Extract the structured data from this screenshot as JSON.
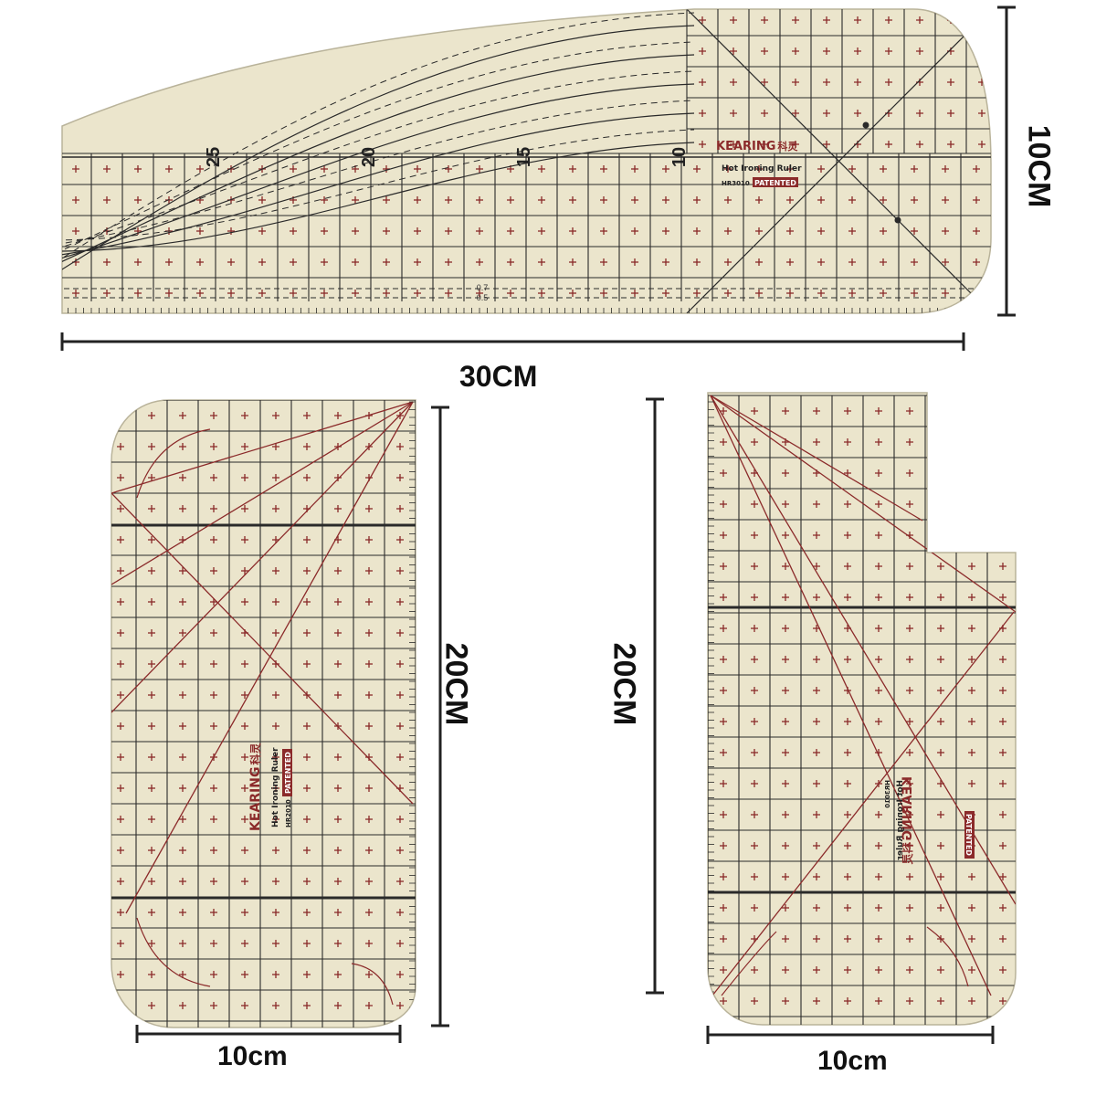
{
  "dimensions": {
    "top_width": "30CM",
    "top_height": "10CM",
    "left_height": "20CM",
    "left_width": "10cm",
    "right_height": "20CM",
    "right_width": "10cm"
  },
  "ruler_label": {
    "brand": "KEARING",
    "brand_cn": "科灵",
    "product": "Hot Ironing Ruler",
    "model": "HR3010",
    "model_left": "HR2010",
    "badge": "PATENTED"
  },
  "top_ruler": {
    "major_ticks": [
      "25",
      "20",
      "15",
      "10"
    ],
    "small_numbers": [
      "0.7",
      "0.5"
    ]
  },
  "colors": {
    "ruler_fill": "#ebe5cc",
    "grid_line": "#2a2a2a",
    "cross_mark": "#8b2a2a",
    "accent_red": "#8b2a2a",
    "dimension_line": "#222222"
  }
}
